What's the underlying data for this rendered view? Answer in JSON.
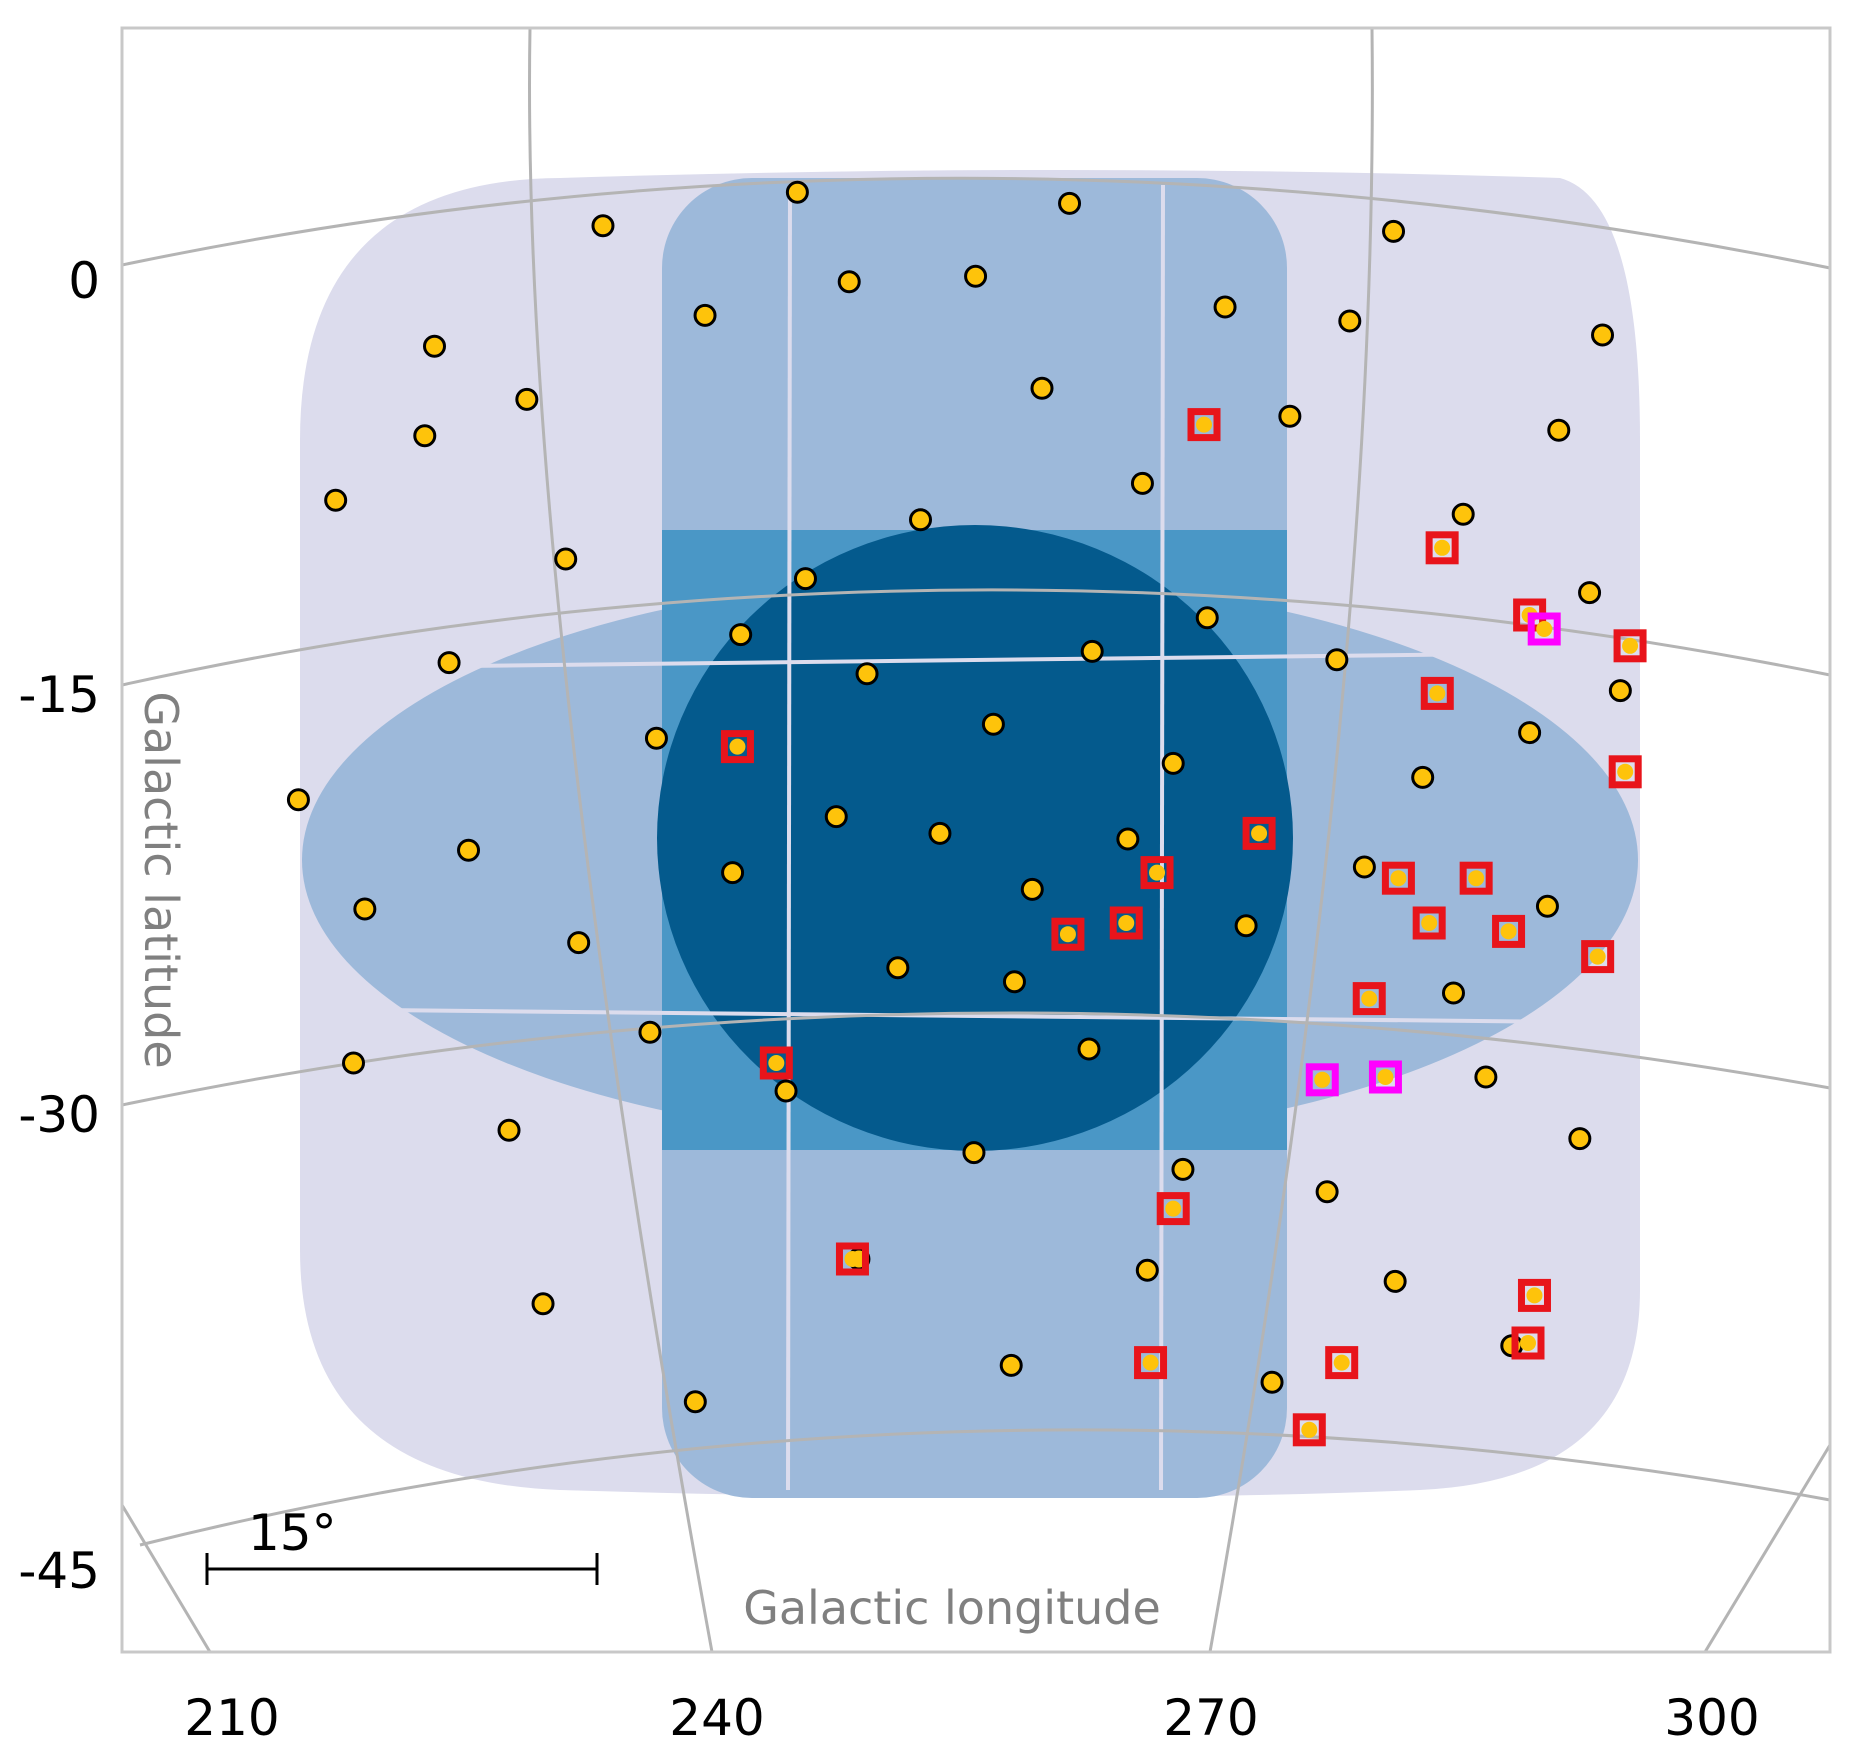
{
  "chart_data": {
    "type": "scatter",
    "projection": "galactic sky map",
    "xlabel": "Galactic longitude",
    "ylabel": "Galactic latitude",
    "xticks": [
      "210",
      "240",
      "270",
      "300"
    ],
    "yticks": [
      "0",
      "-15",
      "-30",
      "-45"
    ],
    "scale_bar_label": "15°",
    "scale_bar_deg": 15,
    "grid": true,
    "colors": {
      "coverage_light": "#dcdced",
      "coverage_mid": "#9db9da",
      "coverage_deep": "#4a97c6",
      "coverage_deepest": "#045a8d",
      "points_fill": "#fec30b",
      "points_edge": "#000000",
      "marker_red": "#e8141b",
      "marker_magenta": "#ff00ff",
      "grid": "#b4b4b4",
      "frame": "#c8c8c8"
    },
    "series": [
      {
        "marker": "circle",
        "points": [
          [
            255.9,
            -0.4
          ],
          [
            232.9,
            1.4
          ],
          [
            239.2,
            -1.8
          ],
          [
            248.1,
            -0.6
          ],
          [
            261.7,
            2.2
          ],
          [
            271.3,
            -1.5
          ],
          [
            281.7,
            1.2
          ],
          [
            294.6,
            -2.5
          ],
          [
            221.9,
            -6.1
          ],
          [
            228.2,
            -4.8
          ],
          [
            230.6,
            -10.5
          ],
          [
            245.4,
            -11.2
          ],
          [
            252.5,
            -9.1
          ],
          [
            266.2,
            -7.8
          ],
          [
            275.3,
            -5.4
          ],
          [
            286.0,
            -8.9
          ],
          [
            293.8,
            -11.7
          ],
          [
            216.4,
            -8.4
          ],
          [
            223.4,
            -14.2
          ],
          [
            236.2,
            -16.9
          ],
          [
            241.4,
            -13.2
          ],
          [
            249.2,
            -14.6
          ],
          [
            257.0,
            -16.4
          ],
          [
            263.1,
            -13.8
          ],
          [
            270.2,
            -12.6
          ],
          [
            278.2,
            -14.1
          ],
          [
            283.5,
            -18.3
          ],
          [
            290.1,
            -16.7
          ],
          [
            295.7,
            -15.2
          ],
          [
            214.1,
            -19.1
          ],
          [
            218.2,
            -23.0
          ],
          [
            224.6,
            -20.9
          ],
          [
            231.4,
            -24.2
          ],
          [
            240.9,
            -21.7
          ],
          [
            247.3,
            -19.7
          ],
          [
            251.1,
            -25.1
          ],
          [
            259.4,
            -22.3
          ],
          [
            265.3,
            -20.5
          ],
          [
            272.6,
            -23.6
          ],
          [
            279.9,
            -21.5
          ],
          [
            285.4,
            -26.0
          ],
          [
            291.2,
            -22.9
          ],
          [
            217.5,
            -28.5
          ],
          [
            227.1,
            -30.9
          ],
          [
            235.8,
            -27.4
          ],
          [
            244.2,
            -29.5
          ],
          [
            255.8,
            -31.7
          ],
          [
            262.9,
            -28.0
          ],
          [
            268.7,
            -32.3
          ],
          [
            277.6,
            -33.1
          ],
          [
            287.4,
            -29.0
          ],
          [
            293.2,
            -31.2
          ],
          [
            229.2,
            -37.1
          ],
          [
            238.6,
            -40.6
          ],
          [
            248.7,
            -35.5
          ],
          [
            258.1,
            -39.3
          ],
          [
            266.5,
            -35.9
          ],
          [
            274.2,
            -39.9
          ],
          [
            281.8,
            -36.3
          ],
          [
            289.0,
            -38.6
          ],
          [
            222.5,
            -2.9
          ],
          [
            244.9,
            2.6
          ],
          [
            260.0,
            -4.4
          ],
          [
            279.0,
            -2.0
          ],
          [
            291.9,
            -5.9
          ],
          [
            253.7,
            -20.3
          ],
          [
            268.1,
            -17.8
          ],
          [
            258.3,
            -25.6
          ]
        ]
      },
      {
        "marker": "square",
        "color": "red",
        "points": [
          [
            270.0,
            -5.7
          ],
          [
            284.7,
            -10.1
          ],
          [
            290.1,
            -12.5
          ],
          [
            296.3,
            -13.6
          ],
          [
            284.4,
            -15.3
          ],
          [
            241.2,
            -17.2
          ],
          [
            296.0,
            -18.1
          ],
          [
            273.4,
            -20.3
          ],
          [
            267.1,
            -21.7
          ],
          [
            282.0,
            -21.9
          ],
          [
            286.8,
            -21.9
          ],
          [
            261.6,
            -23.9
          ],
          [
            265.2,
            -23.5
          ],
          [
            283.9,
            -23.5
          ],
          [
            288.8,
            -23.8
          ],
          [
            294.3,
            -24.7
          ],
          [
            280.2,
            -26.2
          ],
          [
            243.6,
            -28.5
          ],
          [
            268.1,
            -33.7
          ],
          [
            248.3,
            -35.5
          ],
          [
            266.7,
            -39.2
          ],
          [
            278.5,
            -39.2
          ],
          [
            290.4,
            -36.8
          ],
          [
            290.0,
            -38.5
          ],
          [
            276.5,
            -41.6
          ]
        ]
      },
      {
        "marker": "square",
        "color": "magenta",
        "points": [
          [
            291.0,
            -13.0
          ],
          [
            277.3,
            -29.1
          ],
          [
            281.2,
            -29.0
          ]
        ]
      }
    ]
  }
}
